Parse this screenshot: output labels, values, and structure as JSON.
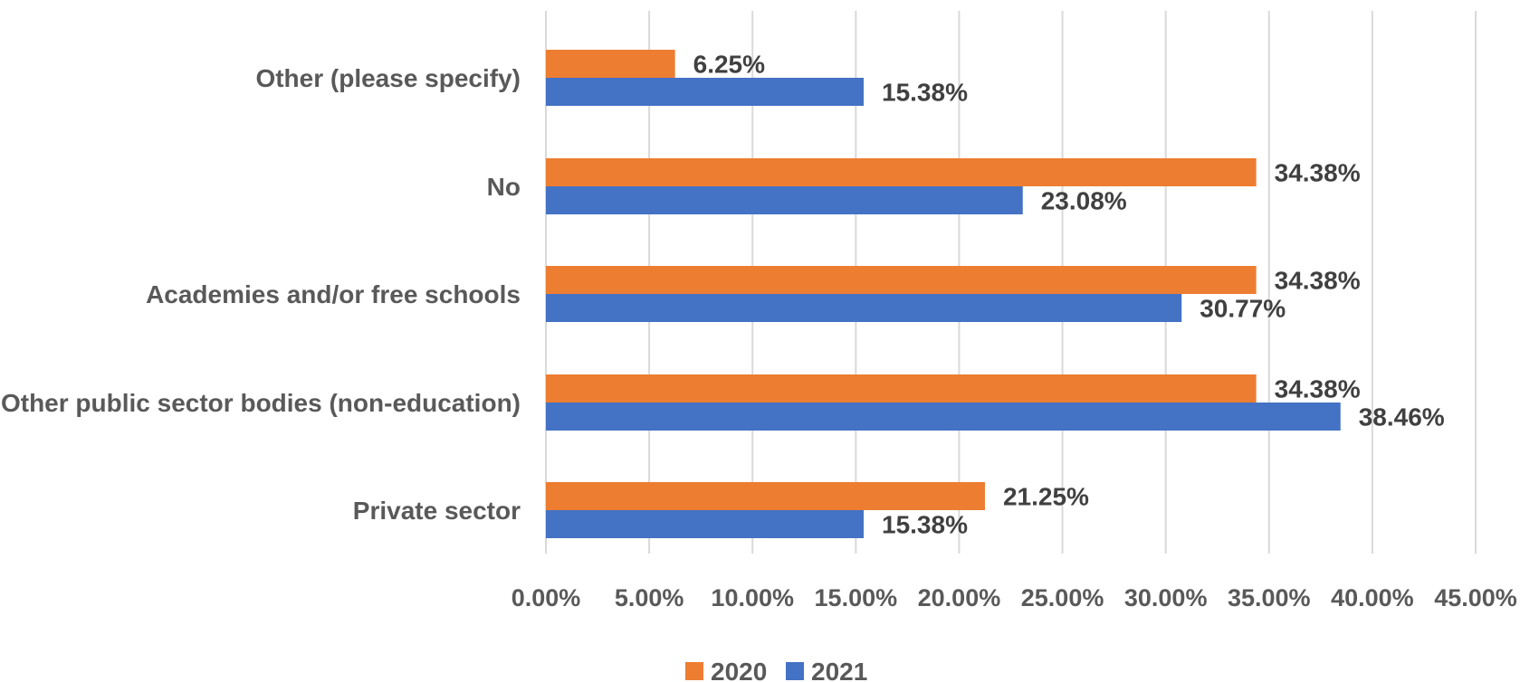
{
  "chart_data": {
    "type": "bar",
    "orientation": "horizontal",
    "categories": [
      "Other (please specify)",
      "No",
      "Academies and/or free schools",
      "Other public sector bodies (non-education)",
      "Private sector"
    ],
    "series": [
      {
        "name": "2020",
        "color": "#ED7D31",
        "values": [
          6.25,
          34.38,
          34.38,
          34.38,
          21.25
        ],
        "labels": [
          "6.25%",
          "34.38%",
          "34.38%",
          "34.38%",
          "21.25%"
        ]
      },
      {
        "name": "2021",
        "color": "#4472C4",
        "values": [
          15.38,
          23.08,
          30.77,
          38.46,
          15.38
        ],
        "labels": [
          "15.38%",
          "23.08%",
          "30.77%",
          "38.46%",
          "15.38%"
        ]
      }
    ],
    "xlim": [
      0,
      45
    ],
    "xticks": [
      0,
      5,
      10,
      15,
      20,
      25,
      30,
      35,
      40,
      45
    ],
    "xtick_labels": [
      "0.00%",
      "5.00%",
      "10.00%",
      "15.00%",
      "20.00%",
      "25.00%",
      "30.00%",
      "35.00%",
      "40.00%",
      "45.00%"
    ],
    "grid": true,
    "legend_position": "bottom",
    "title": "",
    "xlabel": "",
    "ylabel": ""
  }
}
